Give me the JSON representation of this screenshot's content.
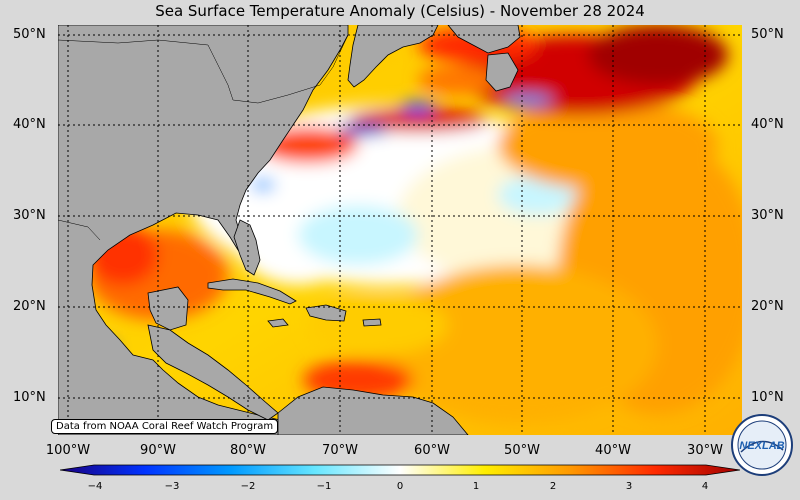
{
  "title": "Sea Surface Temperature Anomaly (Celsius) - November 28 2024",
  "credit": "Data from NOAA Coral Reef Watch Program",
  "logo": {
    "text": "NEXLAB"
  },
  "lat_labels_left": [
    "50°N",
    "40°N",
    "30°N",
    "20°N",
    "10°N"
  ],
  "lat_labels_right": [
    "50°N",
    "40°N",
    "30°N",
    "20°N",
    "10°N"
  ],
  "lon_labels": [
    "100°W",
    "90°W",
    "80°W",
    "70°W",
    "60°W",
    "50°W",
    "40°W",
    "30°W"
  ],
  "colorbar": {
    "ticks": [
      "−4",
      "−3",
      "−2",
      "−1",
      "0",
      "1",
      "2",
      "3",
      "4"
    ],
    "colors": [
      "#1a0080",
      "#0033ff",
      "#0099ff",
      "#66e6ff",
      "#ffffff",
      "#ffee00",
      "#ff9900",
      "#ff2a00",
      "#a00000"
    ]
  },
  "colors": {
    "land": "#a8a8a8",
    "warm": "#ff9900",
    "hot": "#cc0000",
    "neutral": "#ffffff",
    "cold": "#0044dd"
  }
}
